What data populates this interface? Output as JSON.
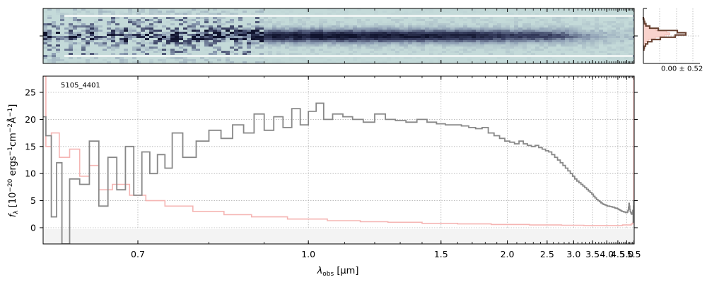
{
  "chart_data": [
    {
      "type": "heatmap",
      "panel": "2d-spectrum",
      "colormap": [
        "#c4dad9",
        "#8e9fb4",
        "#3d4466",
        "#11142e"
      ],
      "x_range": [
        0.6,
        5.52
      ],
      "profile_peak_rel": 0.06,
      "background_color": "#c4dad9"
    },
    {
      "type": "line",
      "panel": "spatial-profile",
      "annotation": "0.00 ± 0.52",
      "data_color": "#6b4535",
      "model_color": "#f2b8ae",
      "profile": [
        0.0,
        0.01,
        0.03,
        0.06,
        0.15,
        0.35,
        0.8,
        1.0,
        0.75,
        0.4,
        0.2,
        0.1,
        0.05,
        0.02,
        0.01
      ],
      "model_profile": [
        0.0,
        0.0,
        0.01,
        0.04,
        0.12,
        0.3,
        0.55,
        0.62,
        0.5,
        0.28,
        0.12,
        0.04,
        0.01,
        0.0,
        0.0
      ],
      "grid": true
    },
    {
      "type": "line",
      "panel": "1d-spectrum",
      "label": "5105_4401",
      "xlabel_main": "λ",
      "xlabel_sub": "obs",
      "xlabel_unit": " [μm]",
      "ylabel": "f_λ [10^-20 ergs^-1cm^-2Å^-1]",
      "ylabel_parts": [
        "f",
        "λ",
        " [10",
        "−20",
        " ergs",
        "−1",
        "cm",
        "−2",
        "Å",
        "−1",
        "]"
      ],
      "x_scale": "reciprocal",
      "xlim": [
        0.6,
        5.52
      ],
      "ylim": [
        -3,
        28
      ],
      "x_ticks": [
        0.7,
        1.0,
        1.5,
        2.0,
        2.5,
        3.0,
        3.5,
        4.0,
        4.5,
        5.0,
        5.5
      ],
      "x_tick_labels": [
        "0.7",
        "1.0",
        "1.5",
        "2.0",
        "2.5",
        "3.0",
        "3.5",
        "4.0",
        "4.5",
        "5.0",
        "5.5"
      ],
      "y_ticks": [
        0,
        5,
        10,
        15,
        20,
        25
      ],
      "grid": true,
      "series": [
        {
          "role": "flux",
          "color": "#888888",
          "x": [
            0.6,
            0.605,
            0.61,
            0.615,
            0.62,
            0.63,
            0.64,
            0.65,
            0.66,
            0.67,
            0.68,
            0.69,
            0.7,
            0.71,
            0.72,
            0.73,
            0.74,
            0.75,
            0.77,
            0.79,
            0.81,
            0.83,
            0.85,
            0.87,
            0.89,
            0.91,
            0.93,
            0.95,
            0.97,
            0.99,
            1.01,
            1.03,
            1.05,
            1.08,
            1.11,
            1.14,
            1.18,
            1.22,
            1.26,
            1.3,
            1.35,
            1.4,
            1.45,
            1.5,
            1.55,
            1.6,
            1.65,
            1.7,
            1.75,
            1.8,
            1.85,
            1.9,
            1.95,
            2.0,
            2.05,
            2.1,
            2.15,
            2.2,
            2.25,
            2.3,
            2.35,
            2.4,
            2.45,
            2.5,
            2.55,
            2.6,
            2.65,
            2.7,
            2.75,
            2.8,
            2.85,
            2.9,
            2.95,
            3.0,
            3.05,
            3.1,
            3.15,
            3.2,
            3.25,
            3.3,
            3.35,
            3.4,
            3.45,
            3.5,
            3.55,
            3.6,
            3.65,
            3.7,
            3.75,
            3.8,
            3.85,
            3.9,
            3.95,
            4.0,
            4.05,
            4.1,
            4.15,
            4.2,
            4.25,
            4.3,
            4.35,
            4.4,
            4.45,
            4.5,
            4.55,
            4.6,
            4.65,
            4.7,
            4.75,
            4.8,
            4.85,
            4.9,
            4.95,
            5.0,
            5.05,
            5.1,
            5.13,
            5.16,
            5.19,
            5.22,
            5.25,
            5.28,
            5.31,
            5.34,
            5.37,
            5.4,
            5.43,
            5.46,
            5.48,
            5.5
          ],
          "y": [
            20.5,
            17.0,
            2.0,
            12.0,
            -3.0,
            9.0,
            8.0,
            16.0,
            4.0,
            13.0,
            7.0,
            15.0,
            6.0,
            14.0,
            10.0,
            13.5,
            11.0,
            17.5,
            13.0,
            16.0,
            18.0,
            16.5,
            19.0,
            17.5,
            21.0,
            18.0,
            20.5,
            18.5,
            22.0,
            19.0,
            21.5,
            23.0,
            20.0,
            21.0,
            20.5,
            20.0,
            19.5,
            21.0,
            20.0,
            19.8,
            19.5,
            20.0,
            19.5,
            19.2,
            19.0,
            19.0,
            18.8,
            18.5,
            18.3,
            18.5,
            17.5,
            17.0,
            16.5,
            16.0,
            15.8,
            15.5,
            16.0,
            15.5,
            15.2,
            15.0,
            15.2,
            14.8,
            14.5,
            14.2,
            14.0,
            13.5,
            13.0,
            12.5,
            12.0,
            11.5,
            11.0,
            10.5,
            10.0,
            9.5,
            9.0,
            8.6,
            8.3,
            8.0,
            7.7,
            7.4,
            7.1,
            6.8,
            6.5,
            6.2,
            5.8,
            5.5,
            5.2,
            5.0,
            4.8,
            4.6,
            4.4,
            4.3,
            4.2,
            4.1,
            4.0,
            4.0,
            3.9,
            3.9,
            3.8,
            3.8,
            3.7,
            3.6,
            3.6,
            3.5,
            3.4,
            3.3,
            3.2,
            3.1,
            3.0,
            3.0,
            2.9,
            2.9,
            2.8,
            2.8,
            2.9,
            3.2,
            3.8,
            4.5,
            4.0,
            3.4,
            3.0,
            2.8,
            2.6,
            2.5,
            2.6,
            2.8,
            3.2,
            1.0,
            4.0,
            5.0
          ]
        },
        {
          "role": "error",
          "color": "#f5b5b3",
          "x": [
            0.6,
            0.605,
            0.61,
            0.62,
            0.63,
            0.64,
            0.65,
            0.66,
            0.68,
            0.7,
            0.72,
            0.75,
            0.8,
            0.85,
            0.9,
            1.0,
            1.1,
            1.2,
            1.3,
            1.5,
            1.7,
            2.0,
            2.5,
            3.0,
            3.5,
            4.0,
            4.5,
            5.0,
            5.2,
            5.4,
            5.45,
            5.48,
            5.5
          ],
          "y": [
            28.0,
            15.0,
            17.5,
            13.0,
            14.5,
            9.5,
            11.5,
            7.0,
            8.0,
            6.0,
            5.0,
            4.0,
            3.0,
            2.4,
            2.0,
            1.6,
            1.3,
            1.1,
            1.0,
            0.8,
            0.7,
            0.6,
            0.5,
            0.45,
            0.4,
            0.4,
            0.4,
            0.5,
            0.5,
            0.7,
            1.0,
            2.0,
            28.0
          ]
        }
      ]
    }
  ]
}
